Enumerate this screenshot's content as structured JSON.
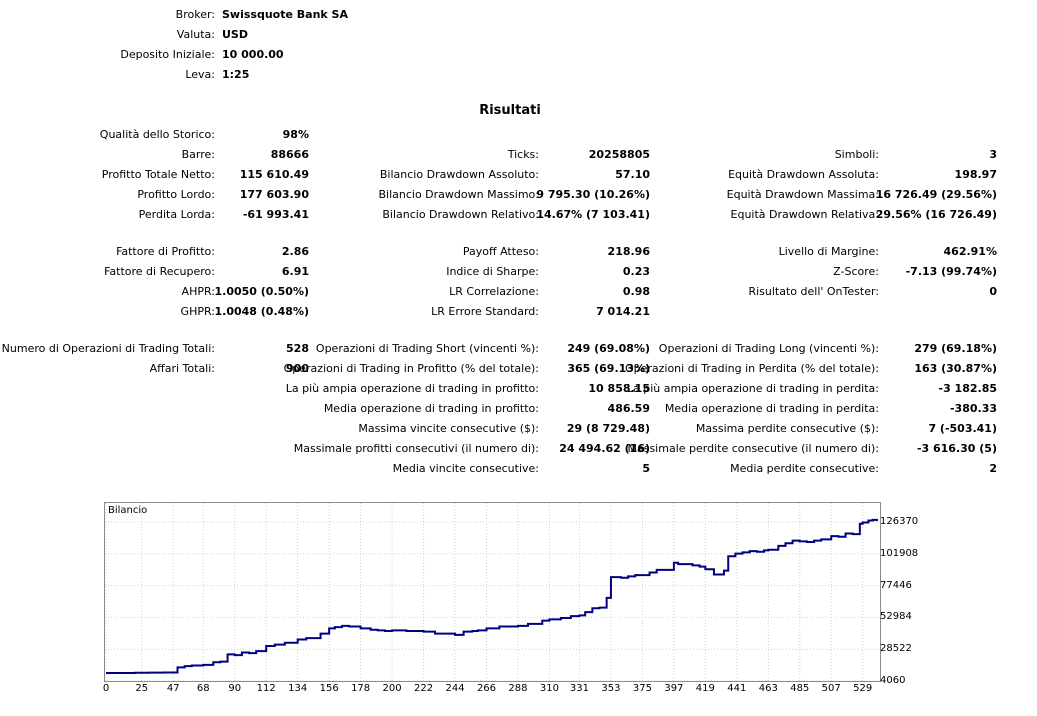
{
  "header": {
    "broker_label": "Broker:",
    "broker": "Swissquote Bank SA",
    "currency_label": "Valuta:",
    "currency": "USD",
    "deposit_label": "Deposito Iniziale:",
    "deposit": "10 000.00",
    "leverage_label": "Leva:",
    "leverage": "1:25"
  },
  "results_title": "Risultati",
  "col1": [
    {
      "label": "Qualità dello Storico:",
      "value": "98%"
    },
    {
      "label": "Barre:",
      "value": "88666"
    },
    {
      "label": "Profitto Totale Netto:",
      "value": "115 610.49"
    },
    {
      "label": "Profitto Lordo:",
      "value": "177 603.90"
    },
    {
      "label": "Perdita Lorda:",
      "value": "-61 993.41"
    },
    {
      "label": "Fattore di Profitto:",
      "value": "2.86"
    },
    {
      "label": "Fattore di Recupero:",
      "value": "6.91"
    },
    {
      "label": "AHPR:",
      "value": "1.0050 (0.50%)"
    },
    {
      "label": "GHPR:",
      "value": "1.0048 (0.48%)"
    },
    {
      "label": "Numero di Operazioni di Trading Totali:",
      "value": "528"
    },
    {
      "label": "Affari Totali:",
      "value": "900"
    }
  ],
  "col2": [
    {
      "label": "Ticks:",
      "value": "20258805"
    },
    {
      "label": "Bilancio Drawdown Assoluto:",
      "value": "57.10"
    },
    {
      "label": "Bilancio Drawdown Massimo:",
      "value": "9 795.30 (10.26%)"
    },
    {
      "label": "Bilancio Drawdown Relativo:",
      "value": "14.67% (7 103.41)"
    },
    {
      "label": "Payoff Atteso:",
      "value": "218.96"
    },
    {
      "label": "Indice di Sharpe:",
      "value": "0.23"
    },
    {
      "label": "LR Correlazione:",
      "value": "0.98"
    },
    {
      "label": "LR Errore Standard:",
      "value": "7 014.21"
    },
    {
      "label": "Operazioni di Trading Short (vincenti %):",
      "value": "249 (69.08%)"
    },
    {
      "label": "Operazioni di Trading in Profitto (% del totale):",
      "value": "365 (69.13%)"
    },
    {
      "label": "La più ampia operazione di trading in profitto:",
      "value": "10 858.15"
    },
    {
      "label": "Media operazione di trading in profitto:",
      "value": "486.59"
    },
    {
      "label": "Massima vincite consecutive ($):",
      "value": "29 (8 729.48)"
    },
    {
      "label": "Massimale profitti consecutivi (il numero di):",
      "value": "24 494.62 (16)"
    },
    {
      "label": "Media vincite consecutive:",
      "value": "5"
    }
  ],
  "col3": [
    {
      "label": "Simboli:",
      "value": "3"
    },
    {
      "label": "Equità Drawdown Assoluta:",
      "value": "198.97"
    },
    {
      "label": "Equità Drawdown Massima:",
      "value": "16 726.49 (29.56%)"
    },
    {
      "label": "Equità Drawdown Relativa:",
      "value": "29.56% (16 726.49)"
    },
    {
      "label": "Livello di Margine:",
      "value": "462.91%"
    },
    {
      "label": "Z-Score:",
      "value": "-7.13 (99.74%)"
    },
    {
      "label": "Risultato dell' OnTester:",
      "value": "0"
    },
    {
      "label": "Operazioni di Trading Long (vincenti %):",
      "value": "279 (69.18%)"
    },
    {
      "label": "Operazioni di Trading in Perdita (% del totale):",
      "value": "163 (30.87%)"
    },
    {
      "label": "La più ampia operazione di trading in perdita:",
      "value": "-3 182.85"
    },
    {
      "label": "Media operazione di trading in perdita:",
      "value": "-380.33"
    },
    {
      "label": "Massima perdite consecutive ($):",
      "value": "7 (-503.41)"
    },
    {
      "label": "Massimale perdite consecutive (il numero di):",
      "value": "-3 616.30 (5)"
    },
    {
      "label": "Media perdite consecutive:",
      "value": "2"
    }
  ],
  "chart_data": {
    "type": "line",
    "title": "Bilancio",
    "xlabel": "",
    "ylabel": "",
    "xlim": [
      0,
      539
    ],
    "ylim": [
      4060,
      130000
    ],
    "x_ticks": [
      "0",
      "25",
      "47",
      "68",
      "90",
      "112",
      "134",
      "156",
      "178",
      "200",
      "222",
      "244",
      "266",
      "288",
      "310",
      "331",
      "353",
      "375",
      "397",
      "419",
      "441",
      "463",
      "485",
      "507",
      "529"
    ],
    "y_ticks": [
      "126370",
      "101908",
      "77446",
      "52984",
      "28522",
      "4060"
    ],
    "grid": true,
    "color": "#000080",
    "series": [
      {
        "x": [
          0,
          10,
          20,
          30,
          40,
          47,
          50,
          55,
          60,
          68,
          75,
          80,
          85,
          90,
          95,
          100,
          105,
          112,
          118,
          125,
          134,
          140,
          150,
          156,
          160,
          165,
          170,
          178,
          185,
          190,
          195,
          200,
          210,
          222,
          230,
          244,
          250,
          256,
          260,
          266,
          275,
          288,
          295,
          305,
          310,
          318,
          325,
          331,
          335,
          340,
          345,
          350,
          353,
          360,
          365,
          370,
          380,
          385,
          397,
          400,
          405,
          410,
          415,
          419,
          425,
          432,
          435,
          440,
          445,
          450,
          455,
          460,
          463,
          470,
          475,
          480,
          485,
          490,
          495,
          500,
          507,
          512,
          517,
          522,
          527,
          529,
          533,
          536,
          539
        ],
        "y": [
          10200,
          10200,
          10400,
          10500,
          10600,
          10600,
          14500,
          15500,
          16000,
          16500,
          18500,
          19000,
          24500,
          24000,
          26000,
          25500,
          27000,
          31000,
          32000,
          33500,
          36000,
          37000,
          40500,
          44500,
          45500,
          46500,
          46000,
          44500,
          43500,
          43000,
          42500,
          43000,
          42500,
          42000,
          40500,
          39500,
          42000,
          42500,
          43000,
          44500,
          46000,
          46500,
          48000,
          50500,
          51500,
          52500,
          54000,
          54500,
          57000,
          60000,
          60500,
          68000,
          84000,
          83500,
          84500,
          85500,
          87500,
          89500,
          95000,
          94000,
          94000,
          93000,
          92000,
          90000,
          86000,
          89000,
          100000,
          102000,
          103000,
          104000,
          103500,
          104500,
          105000,
          108000,
          110000,
          112000,
          111500,
          111000,
          112000,
          113000,
          115500,
          115000,
          117500,
          117000,
          125000,
          126000,
          127500,
          128000,
          127000
        ]
      }
    ]
  }
}
